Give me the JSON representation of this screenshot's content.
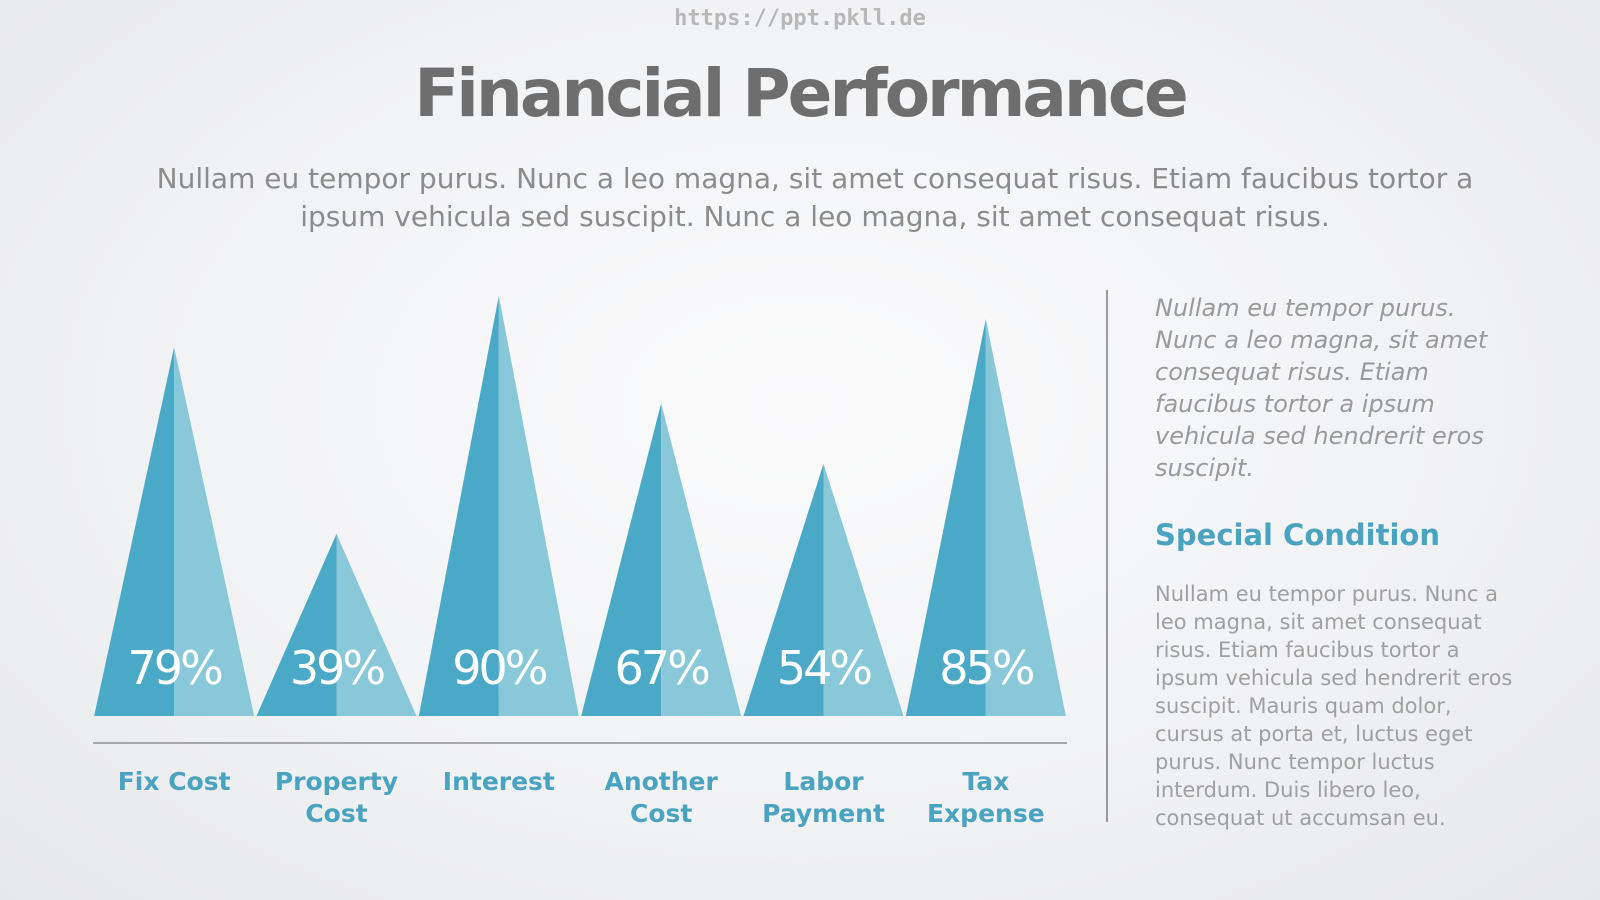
{
  "header": {
    "url": "https://ppt.pkll.de",
    "title": "Financial Performance",
    "subtitle": "Nullam eu tempor purus. Nunc a leo magna, sit amet consequat risus. Etiam faucibus tortor a ipsum vehicula sed suscipit. Nunc a leo magna, sit amet consequat risus."
  },
  "sidebar": {
    "note": "Nullam eu tempor purus. Nunc a leo magna, sit amet consequat risus. Etiam faucibus tortor a ipsum vehicula sed hendrerit eros suscipit.",
    "heading": "Special Condition",
    "body": "Nullam eu tempor purus. Nunc a leo magna, sit amet consequat risus. Etiam faucibus tortor a ipsum vehicula sed hendrerit eros suscipit. Mauris quam dolor, cursus at porta et, luctus eget purus. Nunc tempor luctus interdum. Duis libero leo, consequat ut accumsan eu."
  },
  "chart_data": {
    "type": "triangle",
    "categories": [
      "Fix Cost",
      "Property Cost",
      "Interest",
      "Another Cost",
      "Labor Payment",
      "Tax Expense"
    ],
    "values": [
      79,
      39,
      90,
      67,
      54,
      85
    ],
    "value_labels": [
      "79%",
      "39%",
      "90%",
      "67%",
      "54%",
      "85%"
    ],
    "colors": [
      "#4aa9c6",
      "#88c8d9"
    ],
    "ylim": [
      0,
      100
    ]
  }
}
